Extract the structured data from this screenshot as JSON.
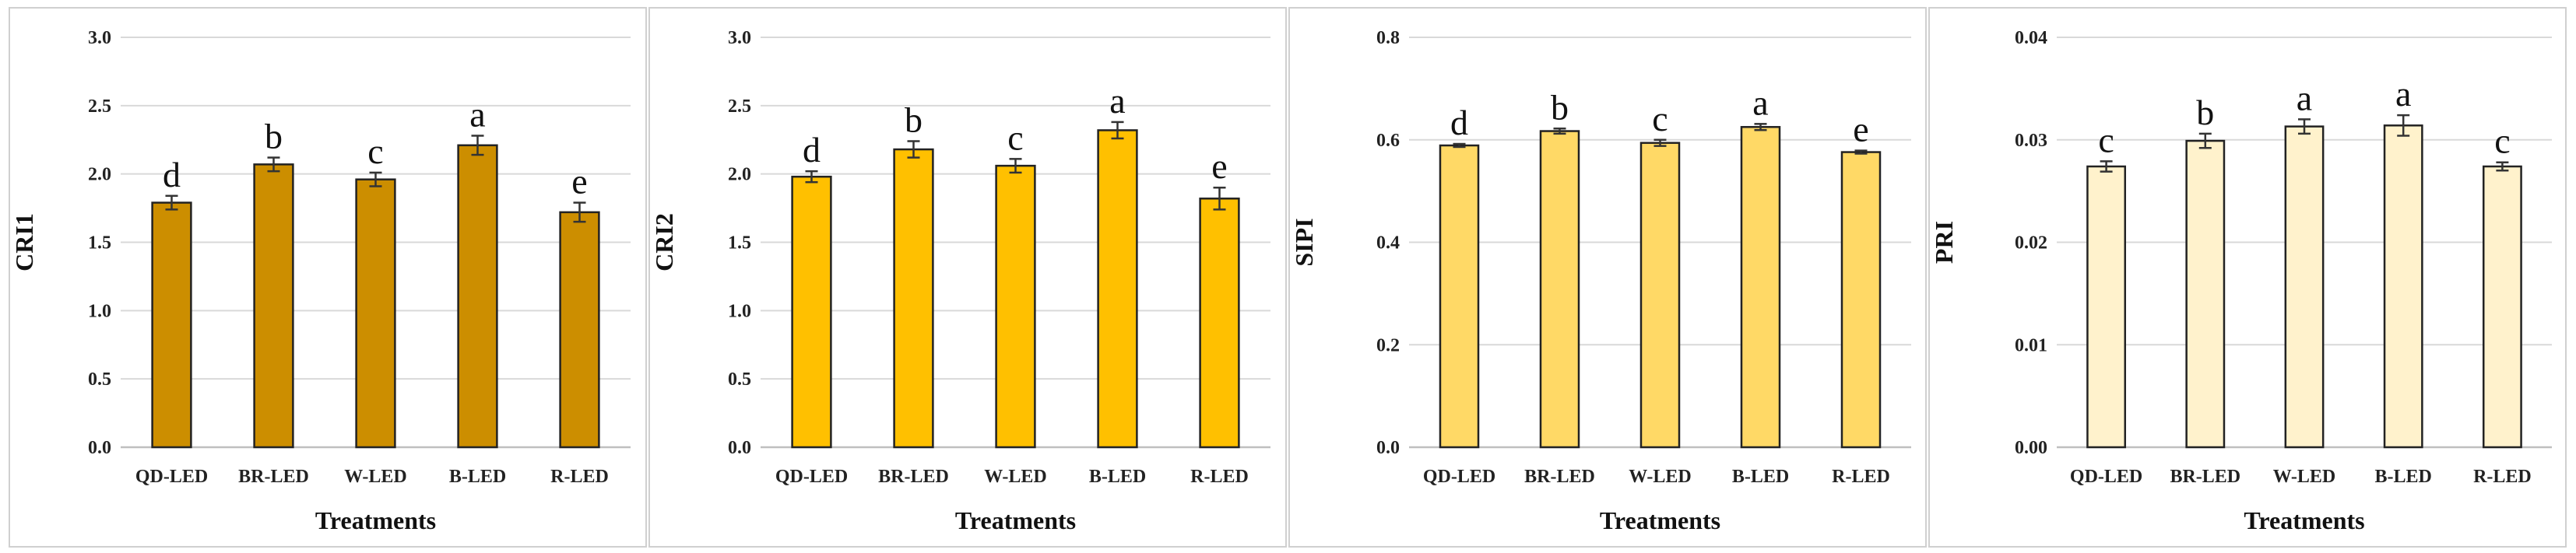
{
  "chart_data": [
    {
      "type": "bar",
      "categories": [
        "QD-LED",
        "BR-LED",
        "W-LED",
        "B-LED",
        "R-LED"
      ],
      "values": [
        1.79,
        2.07,
        1.96,
        2.21,
        1.72
      ],
      "errors": [
        0.05,
        0.05,
        0.05,
        0.07,
        0.07
      ],
      "significance": [
        "d",
        "b",
        "c",
        "a",
        "e"
      ],
      "ylabel": "CRI1",
      "xlabel": "Treatments",
      "ylim": [
        0,
        3
      ],
      "yticks": [
        "0.0",
        "0.5",
        "1.0",
        "1.5",
        "2.0",
        "2.5",
        "3.0"
      ],
      "color": "#CC8E00"
    },
    {
      "type": "bar",
      "categories": [
        "QD-LED",
        "BR-LED",
        "W-LED",
        "B-LED",
        "R-LED"
      ],
      "values": [
        1.98,
        2.18,
        2.06,
        2.32,
        1.82
      ],
      "errors": [
        0.04,
        0.06,
        0.05,
        0.06,
        0.08
      ],
      "significance": [
        "d",
        "b",
        "c",
        "a",
        "e"
      ],
      "ylabel": "CRI2",
      "xlabel": "Treatments",
      "ylim": [
        0,
        3
      ],
      "yticks": [
        "0.0",
        "0.5",
        "1.0",
        "1.5",
        "2.0",
        "2.5",
        "3.0"
      ],
      "color": "#FFC000"
    },
    {
      "type": "bar",
      "categories": [
        "QD-LED",
        "BR-LED",
        "W-LED",
        "B-LED",
        "R-LED"
      ],
      "values": [
        0.589,
        0.617,
        0.594,
        0.625,
        0.576
      ],
      "errors": [
        0.003,
        0.005,
        0.006,
        0.006,
        0.003
      ],
      "significance": [
        "d",
        "b",
        "c",
        "a",
        "e"
      ],
      "ylabel": "SIPI",
      "xlabel": "Treatments",
      "ylim": [
        0,
        0.8
      ],
      "yticks": [
        "0.0",
        "0.2",
        "0.4",
        "0.6",
        "0.8"
      ],
      "color": "#FFD966"
    },
    {
      "type": "bar",
      "categories": [
        "QD-LED",
        "BR-LED",
        "W-LED",
        "B-LED",
        "R-LED"
      ],
      "values": [
        0.0274,
        0.0299,
        0.0313,
        0.0314,
        0.0274
      ],
      "errors": [
        0.0005,
        0.0007,
        0.0007,
        0.001,
        0.0004
      ],
      "significance": [
        "c",
        "b",
        "a",
        "a",
        "c"
      ],
      "ylabel": "PRI",
      "xlabel": "Treatments",
      "ylim": [
        0,
        0.04
      ],
      "yticks": [
        "0.00",
        "0.01",
        "0.02",
        "0.03",
        "0.04"
      ],
      "color": "#FFF2CC"
    }
  ]
}
